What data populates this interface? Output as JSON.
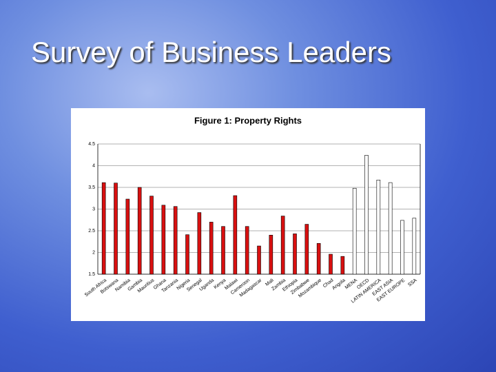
{
  "title": "Survey of Business Leaders",
  "chart_data": {
    "type": "bar",
    "title": "Figure 1: Property Rights",
    "categories": [
      "South Africa",
      "Botswana",
      "Namibia",
      "Gambia",
      "Mauritius",
      "Ghana",
      "Tanzania",
      "Nigeria",
      "Senegal",
      "Uganda",
      "Kenya",
      "Malawi",
      "Cameroon",
      "Madagascar",
      "Mali",
      "Zambia",
      "Ethiopia",
      "Zimbabwe",
      "Mozambique",
      "Chad",
      "Angola",
      "MENA",
      "OECD",
      "LATIN AMERICA",
      "EAST ASIA",
      "EAST EUROPE",
      "SSA"
    ],
    "series": [
      {
        "color": "#d81010",
        "values": [
          3.61,
          3.6,
          3.23,
          3.5,
          3.3,
          3.09,
          3.06,
          2.41,
          2.92,
          2.7,
          2.6,
          3.31,
          2.6,
          2.15,
          2.4,
          2.84,
          2.43,
          2.65,
          2.21,
          1.96,
          1.91,
          null,
          null,
          null,
          null,
          null,
          null
        ]
      },
      {
        "color": "#ffffff",
        "values": [
          null,
          null,
          null,
          null,
          null,
          null,
          null,
          null,
          null,
          null,
          null,
          null,
          null,
          null,
          null,
          null,
          null,
          null,
          null,
          null,
          null,
          3.48,
          4.24,
          3.67,
          3.61,
          2.74,
          2.79
        ]
      }
    ],
    "ylim": [
      1.5,
      4.5
    ],
    "yticks": [
      1.5,
      2,
      2.5,
      3,
      3.5,
      4,
      4.5
    ],
    "grid": true
  }
}
